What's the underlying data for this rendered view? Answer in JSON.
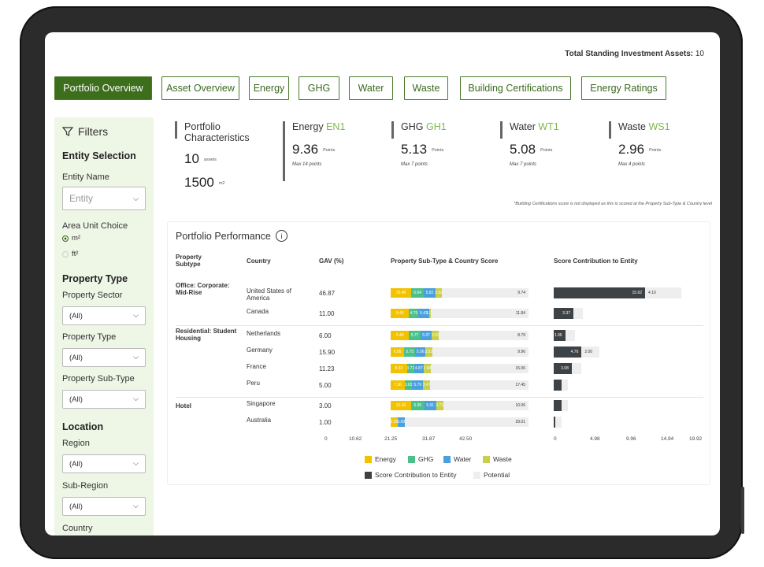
{
  "header": {
    "total_label": "Total Standing Investment Assets:",
    "total_value": "10"
  },
  "tabs": [
    {
      "label": "Portfolio Overview",
      "active": true
    },
    {
      "label": "Asset Overview"
    },
    {
      "label": "Energy"
    },
    {
      "label": "GHG"
    },
    {
      "label": "Water"
    },
    {
      "label": "Waste"
    },
    {
      "label": "Building Certifications"
    },
    {
      "label": "Energy Ratings"
    }
  ],
  "sidebar": {
    "title": "Filters",
    "entity_selection": "Entity Selection",
    "entity_name_label": "Entity Name",
    "entity_placeholder": "Entity",
    "area_unit_label": "Area Unit Choice",
    "area_units": [
      "m²",
      "ft²"
    ],
    "property_type_heading": "Property Type",
    "property_sector_label": "Property Sector",
    "property_sector_value": "(All)",
    "property_type_label": "Property Type",
    "property_type_value": "(All)",
    "property_subtype_label": "Property Sub-Type",
    "property_subtype_value": "(All)",
    "location_heading": "Location",
    "region_label": "Region",
    "region_value": "(All)",
    "subregion_label": "Sub-Region",
    "subregion_value": "(All)",
    "country_label": "Country"
  },
  "kpis": {
    "portfolio": {
      "title": "Portfolio Characteristics",
      "assets": "10",
      "assets_unit": "assets",
      "area": "1500",
      "area_unit": "m2"
    },
    "items": [
      {
        "name": "Energy",
        "code": "EN1",
        "value": "9.36",
        "unit": "Points",
        "max": "Max 14 points"
      },
      {
        "name": "GHG",
        "code": "GH1",
        "value": "5.13",
        "unit": "Points",
        "max": "Max 7 points"
      },
      {
        "name": "Water",
        "code": "WT1",
        "value": "5.08",
        "unit": "Points",
        "max": "Max 7 points"
      },
      {
        "name": "Waste",
        "code": "WS1",
        "value": "2.96",
        "unit": "Points",
        "max": "Max 4 points"
      }
    ],
    "note": "*Building Certifications score is not displayed as this is scored at the Property Sub-Type & Country level"
  },
  "performance": {
    "title": "Portfolio Performance",
    "columns": {
      "subtype": "Property Subtype",
      "country": "Country",
      "gav": "GAV (%)",
      "score": "Property Sub-Type & Country Score",
      "contribution": "Score Contribution to Entity"
    },
    "rows": [
      {
        "subtype": "Office: Corporate: Mid-Rise",
        "country": "United States of America",
        "gav": "46.87",
        "energy": 10.48,
        "ghg": 6.64,
        "water": 5.82,
        "waste": 3.52,
        "potential": 9.74,
        "contrib": 15.62,
        "contrib_potential": 4.1
      },
      {
        "subtype": "",
        "country": "Canada",
        "gav": "11.00",
        "energy": 9.49,
        "ghg": 4.79,
        "water": 5.43,
        "waste": 1.05,
        "potential": 11.84,
        "contrib": 3.37,
        "contrib_potential": null
      },
      {
        "subtype": "Residential: Student Housing",
        "country": "Netherlands",
        "gav": "6.00",
        "energy": 9.49,
        "ghg": 5.77,
        "water": 5.97,
        "waste": 3.63,
        "potential": 8.79,
        "contrib": 1.96,
        "contrib_potential": null
      },
      {
        "subtype": "",
        "country": "Germany",
        "gav": "15.90",
        "energy": 6.95,
        "ghg": 5.75,
        "water": 5.06,
        "waste": 3.53,
        "potential": 9.96,
        "contrib": 4.76,
        "contrib_potential": 2.0
      },
      {
        "subtype": "",
        "country": "France",
        "gav": "11.23",
        "energy": 8.33,
        "ghg": 3.72,
        "water": 4.87,
        "waste": 3.68,
        "potential": 15.06,
        "contrib": 3.08,
        "contrib_potential": null
      },
      {
        "subtype": "",
        "country": "Peru",
        "gav": "5.00",
        "energy": 7.36,
        "ghg": 3.63,
        "water": 5.79,
        "waste": 3.47,
        "potential": 17.45,
        "contrib": null,
        "contrib_potential": null
      },
      {
        "subtype": "Hotel",
        "country": "Singapore",
        "gav": "3.00",
        "energy": 10.42,
        "ghg": 6.95,
        "water": 5.91,
        "waste": 3.71,
        "potential": 10.06,
        "contrib": null,
        "contrib_potential": null
      },
      {
        "subtype": "",
        "country": "Australia",
        "gav": "1.00",
        "energy": 3.55,
        "ghg": null,
        "water": 3.69,
        "waste": null,
        "potential": 29.01,
        "contrib": null,
        "contrib_potential": null
      }
    ],
    "score_ticks": [
      "0",
      "10.62",
      "21.25",
      "31.87",
      "42.50"
    ],
    "contrib_ticks": [
      "0",
      "4.98",
      "9.96",
      "14.94",
      "19.92"
    ],
    "legend": {
      "energy": "Energy",
      "ghg": "GHG",
      "water": "Water",
      "waste": "Waste",
      "contrib": "Score Contribution to Entity",
      "potential": "Potential"
    },
    "colors": {
      "energy": "#f2c200",
      "ghg": "#4cc08a",
      "water": "#4aa0dc",
      "waste": "#c9cf4a",
      "contrib": "#3d4246",
      "potential": "#eeeeee"
    }
  }
}
